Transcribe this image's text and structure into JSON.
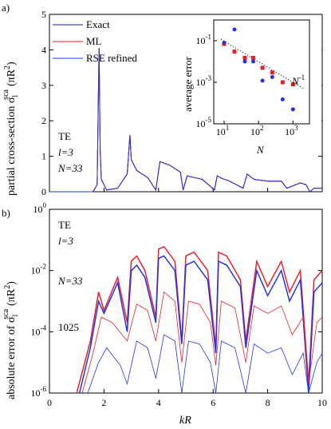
{
  "panel_a": {
    "tag": "a)",
    "ylabel": "partial cross-section σ",
    "ylabel_sub": "l",
    "ylabel_sup": "sca",
    "ylabel_unit": "(πR",
    "ylabel_unit_sup": "2",
    "ylabel_unit_end": ")",
    "legend": [
      "Exact",
      "ML",
      "RSE refined"
    ],
    "annotations": [
      "TE",
      "l=3",
      "N=33"
    ],
    "inset": {
      "ylabel": "average error",
      "xlabel": "N",
      "trend_label": "N",
      "trend_label_sup": "-1"
    }
  },
  "panel_b": {
    "tag": "b)",
    "ylabel": "absolute error of σ",
    "ylabel_sub": "l",
    "ylabel_sup": "sca",
    "ylabel_unit": "(πR",
    "ylabel_unit_sup": "2",
    "ylabel_unit_end": ")",
    "xlabel": "kR",
    "annotations": [
      "TE",
      "l=3",
      "N=33",
      "1025"
    ]
  },
  "colors": {
    "exact": "#1a1a8c",
    "ml": "#e8202a",
    "rse": "#2233e6",
    "axis": "#000000"
  },
  "chart_data": [
    {
      "type": "line",
      "title": "",
      "xlabel": "",
      "ylabel": "partial cross-section σ_l^sca (πR^2)",
      "xlim": [
        0,
        10
      ],
      "ylim": [
        0,
        5
      ],
      "yticks": [
        0,
        1,
        2,
        3,
        4,
        5
      ],
      "xticks": [
        0,
        2,
        4,
        6,
        8,
        10
      ],
      "legend_position": "top-left",
      "series": [
        {
          "name": "Exact",
          "x": [
            0,
            1.6,
            1.75,
            1.82,
            1.86,
            1.9,
            2.1,
            2.5,
            2.85,
            2.95,
            3.0,
            3.2,
            3.6,
            3.9,
            4.05,
            4.4,
            4.8,
            4.9,
            5.05,
            5.3,
            5.6,
            6.05,
            6.15,
            6.3,
            6.6,
            7.1,
            7.25,
            7.5,
            8.0,
            8.5,
            8.7,
            9.2,
            9.4,
            9.55,
            9.7,
            10
          ],
          "y": [
            0,
            0.0,
            0.2,
            4.05,
            1.2,
            0.35,
            0.05,
            0.1,
            0.5,
            1.6,
            0.9,
            0.6,
            0.4,
            0.05,
            0.85,
            0.75,
            0.55,
            0.05,
            0.45,
            0.4,
            0.35,
            0.05,
            0.45,
            0.38,
            0.3,
            0.1,
            0.5,
            0.35,
            0.3,
            0.3,
            0.1,
            0.25,
            0.2,
            0.0,
            0.1,
            0.1
          ]
        },
        {
          "name": "ML",
          "x": [
            0,
            1.6,
            1.75,
            1.82,
            1.86,
            1.9,
            2.1,
            2.5,
            2.85,
            2.95,
            3.0,
            3.2,
            3.6,
            3.9,
            4.05,
            4.4,
            4.8,
            4.9,
            5.05,
            5.3,
            5.6,
            6.05,
            6.15,
            6.3,
            6.6,
            7.1,
            7.25,
            7.5,
            8.0,
            8.5,
            8.7,
            9.2,
            9.4,
            9.55,
            9.7,
            10
          ],
          "y": [
            0,
            0.0,
            0.2,
            4.05,
            1.2,
            0.35,
            0.05,
            0.1,
            0.5,
            1.6,
            0.9,
            0.6,
            0.4,
            0.05,
            0.85,
            0.75,
            0.55,
            0.05,
            0.45,
            0.4,
            0.35,
            0.05,
            0.45,
            0.38,
            0.3,
            0.1,
            0.5,
            0.35,
            0.3,
            0.3,
            0.1,
            0.25,
            0.2,
            0.0,
            0.1,
            0.1
          ]
        },
        {
          "name": "RSE refined",
          "x": [
            0,
            1.6,
            1.75,
            1.82,
            1.86,
            1.9,
            2.1,
            2.5,
            2.85,
            2.95,
            3.0,
            3.2,
            3.6,
            3.9,
            4.05,
            4.4,
            4.8,
            4.9,
            5.05,
            5.3,
            5.6,
            6.05,
            6.15,
            6.3,
            6.6,
            7.1,
            7.25,
            7.5,
            8.0,
            8.5,
            8.7,
            9.2,
            9.4,
            9.55,
            9.7,
            10
          ],
          "y": [
            0,
            0.0,
            0.2,
            4.05,
            1.2,
            0.35,
            0.05,
            0.1,
            0.5,
            1.6,
            0.9,
            0.6,
            0.4,
            0.05,
            0.85,
            0.75,
            0.55,
            0.05,
            0.45,
            0.4,
            0.35,
            0.05,
            0.45,
            0.38,
            0.3,
            0.1,
            0.5,
            0.35,
            0.3,
            0.3,
            0.1,
            0.25,
            0.2,
            0.0,
            0.1,
            0.1
          ]
        }
      ]
    },
    {
      "type": "scatter",
      "title": "",
      "xlabel": "N",
      "ylabel": "average error",
      "xscale": "log",
      "yscale": "log",
      "xlim": [
        5,
        3000
      ],
      "ylim": [
        1e-05,
        1
      ],
      "xticks": [
        10,
        100,
        1000
      ],
      "yticks": [
        1e-05,
        0.001,
        0.1
      ],
      "xtick_labels": [
        "10",
        "10",
        "10"
      ],
      "xtick_sups": [
        "1",
        "2",
        "3"
      ],
      "ytick_labels": [
        "10",
        "10",
        "10"
      ],
      "ytick_sups": [
        "-5",
        "-3",
        "-1"
      ],
      "series": [
        {
          "name": "",
          "color": "red",
          "marker": "square",
          "x": [
            10,
            20,
            40,
            70,
            130,
            250,
            500,
            1000
          ],
          "y": [
            0.07,
            0.03,
            0.015,
            0.015,
            0.005,
            0.003,
            0.001,
            0.0008
          ]
        },
        {
          "name": "",
          "color": "blue",
          "marker": "circle",
          "x": [
            10,
            20,
            40,
            70,
            130,
            250,
            500,
            1000
          ],
          "y": [
            0.08,
            0.35,
            0.01,
            0.01,
            0.0012,
            0.0018,
            0.00015,
            5e-05
          ]
        },
        {
          "name": "",
          "style": "dotted",
          "x": [
            8,
            2000
          ],
          "y": [
            0.12,
            0.0005
          ]
        }
      ]
    },
    {
      "type": "line",
      "title": "",
      "xlabel": "kR",
      "ylabel": "absolute error of σ_l^sca (πR^2)",
      "yscale": "log",
      "xlim": [
        0,
        10
      ],
      "ylim": [
        1e-06,
        1
      ],
      "xticks": [
        0,
        2,
        4,
        6,
        8,
        10
      ],
      "yticks": [
        1e-06,
        0.0001,
        0.01,
        1
      ],
      "ytick_labels": [
        "10",
        "10",
        "10",
        "10"
      ],
      "ytick_sups": [
        "-6",
        "-4",
        "-2",
        "0"
      ],
      "series": [
        {
          "name": "ML",
          "x": [
            1.0,
            1.5,
            1.8,
            2.0,
            2.5,
            2.85,
            3.0,
            3.2,
            3.5,
            3.9,
            4.0,
            4.2,
            4.6,
            4.85,
            5.0,
            5.3,
            5.8,
            6.1,
            6.2,
            6.5,
            7.0,
            7.2,
            7.6,
            8.0,
            8.5,
            8.8,
            9.2,
            9.5,
            9.7,
            10
          ],
          "y": [
            1e-06,
            5e-05,
            0.002,
            0.0005,
            0.006,
            0.0002,
            0.02,
            0.03,
            0.01,
            0.0003,
            0.05,
            0.06,
            0.02,
            5e-05,
            0.03,
            0.04,
            0.01,
            3e-05,
            0.04,
            0.03,
            0.005,
            5e-05,
            0.02,
            0.003,
            0.02,
            0.002,
            0.01,
            2e-06,
            0.005,
            0.01
          ]
        },
        {
          "name": "RSE refined",
          "x": [
            1.1,
            1.5,
            1.8,
            2.0,
            2.5,
            2.85,
            3.0,
            3.2,
            3.5,
            3.9,
            4.0,
            4.2,
            4.6,
            4.85,
            5.0,
            5.3,
            5.8,
            6.1,
            6.2,
            6.5,
            7.0,
            7.2,
            7.6,
            8.0,
            8.5,
            8.8,
            9.2,
            9.5,
            9.7,
            10
          ],
          "y": [
            1e-06,
            3e-05,
            0.001,
            0.0004,
            0.004,
            0.0001,
            0.01,
            0.015,
            0.006,
            0.0002,
            0.025,
            0.03,
            0.01,
            4e-05,
            0.015,
            0.02,
            0.005,
            2e-05,
            0.02,
            0.015,
            0.003,
            3e-05,
            0.01,
            0.0015,
            0.01,
            0.001,
            0.005,
            1e-06,
            0.002,
            0.004
          ]
        },
        {
          "name": "ML (N=1025)",
          "x": [
            1.2,
            1.6,
            1.9,
            2.3,
            2.85,
            3.2,
            3.6,
            3.9,
            4.2,
            4.6,
            4.85,
            5.1,
            5.5,
            5.9,
            6.1,
            6.3,
            6.8,
            7.2,
            7.5,
            8.0,
            8.5,
            8.9,
            9.3,
            9.5,
            9.8,
            10
          ],
          "y": [
            1e-06,
            2e-05,
            0.0003,
            0.0002,
            5e-05,
            0.0008,
            0.0005,
            5e-05,
            0.002,
            0.001,
            1e-05,
            0.001,
            0.0008,
            0.0002,
            8e-06,
            0.001,
            0.0006,
            1e-05,
            0.0007,
            0.0004,
            0.0007,
            8e-05,
            0.0003,
            2e-06,
            0.0002,
            0.0003
          ]
        },
        {
          "name": "RSE refined (N=1025)",
          "x": [
            1.4,
            1.8,
            2.1,
            2.6,
            2.85,
            3.2,
            3.6,
            3.9,
            4.2,
            4.6,
            4.85,
            5.1,
            5.5,
            5.9,
            6.1,
            6.3,
            6.8,
            7.2,
            7.5,
            8.0,
            8.5,
            8.9,
            9.3,
            9.5,
            9.8,
            10
          ],
          "y": [
            1e-06,
            1e-05,
            3e-05,
            8e-06,
            2e-06,
            5e-05,
            3e-05,
            3e-06,
            8e-05,
            5e-05,
            1e-06,
            5e-05,
            4e-05,
            1e-05,
            1e-06,
            5e-05,
            3e-05,
            1e-06,
            4e-05,
            2e-05,
            3e-05,
            4e-06,
            2e-05,
            1e-06,
            1e-05,
            2e-05
          ]
        }
      ]
    }
  ]
}
